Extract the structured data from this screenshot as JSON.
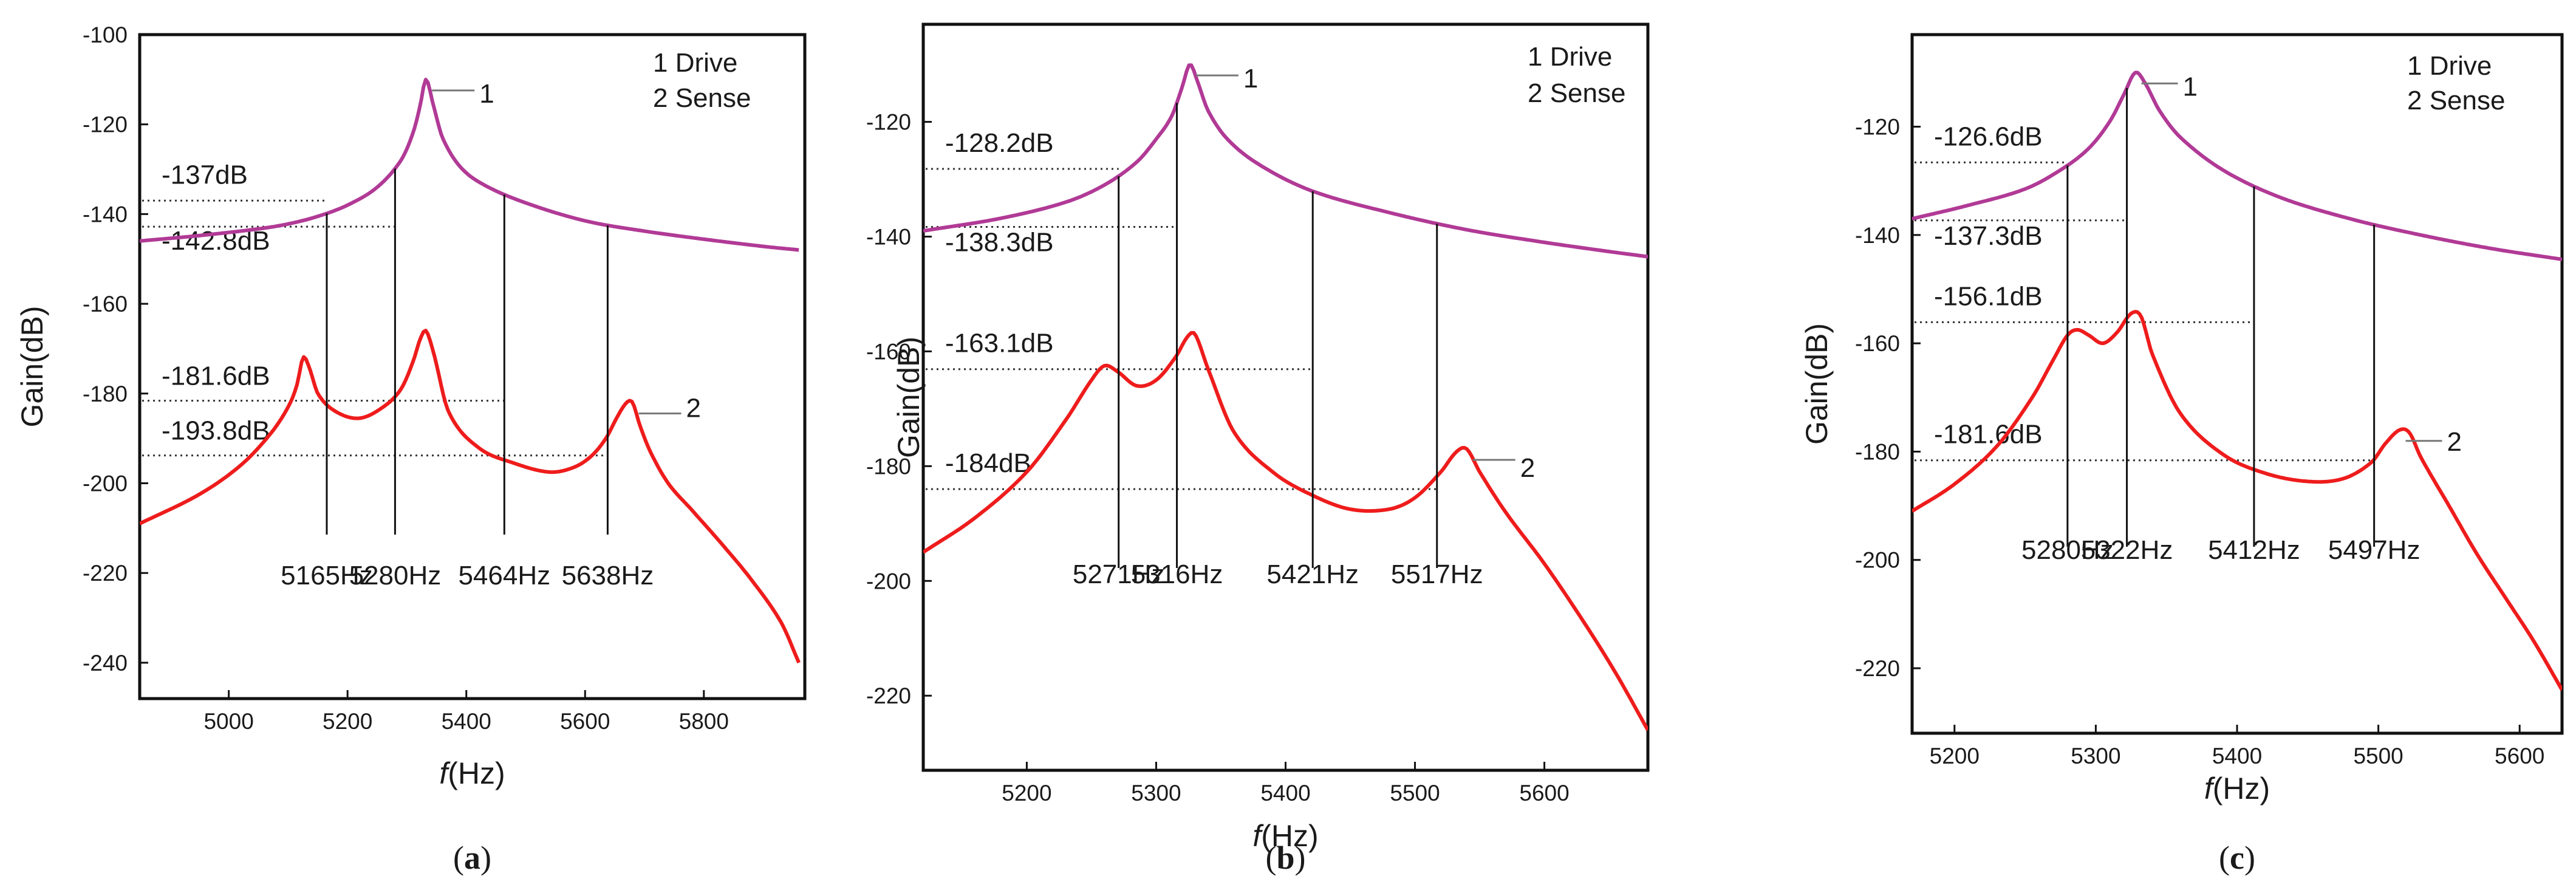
{
  "figure": {
    "labels": [
      "(a)",
      "(b)",
      "(c)"
    ],
    "label_parts": [
      {
        "open": "(",
        "letter": "a",
        "close": ")"
      },
      {
        "open": "(",
        "letter": "b",
        "close": ")"
      },
      {
        "open": "(",
        "letter": "c",
        "close": ")"
      }
    ]
  },
  "colors": {
    "drive": "#b13a96",
    "sense": "#ee1c1c",
    "axis": "#111111",
    "dotted": "#333333"
  },
  "chart_data": [
    {
      "type": "line",
      "title": "(a)",
      "xlabel_italic": "f",
      "xlabel_rest": "(Hz)",
      "ylabel": "Gain(dB)",
      "xlim": [
        4850,
        5970
      ],
      "ylim": [
        -248,
        -100
      ],
      "xticks": [
        5000,
        5200,
        5400,
        5600,
        5800
      ],
      "yticks": [
        -100,
        -120,
        -140,
        -160,
        -180,
        -200,
        -220,
        -240
      ],
      "legend": [
        "1  Drive",
        "2  Sense"
      ],
      "series_tags": [
        "1",
        "2"
      ],
      "series": [
        {
          "name": "Drive",
          "x": [
            4850,
            4950,
            5050,
            5100,
            5150,
            5200,
            5250,
            5290,
            5310,
            5322,
            5332,
            5345,
            5360,
            5390,
            5430,
            5500,
            5600,
            5700,
            5800,
            5900,
            5960
          ],
          "values": [
            -146,
            -144.8,
            -143.3,
            -142.2,
            -140.5,
            -138,
            -134,
            -128,
            -122,
            -116,
            -110,
            -116,
            -123,
            -129.5,
            -133.5,
            -137.5,
            -141.5,
            -143.8,
            -145.6,
            -147.2,
            -148
          ]
        },
        {
          "name": "Sense",
          "x": [
            4850,
            4950,
            5020,
            5070,
            5100,
            5115,
            5125,
            5135,
            5150,
            5180,
            5220,
            5260,
            5290,
            5310,
            5322,
            5332,
            5345,
            5370,
            5420,
            5480,
            5540,
            5580,
            5610,
            5635,
            5655,
            5670,
            5680,
            5692,
            5710,
            5740,
            5780,
            5830,
            5880,
            5930,
            5960
          ],
          "values": [
            -209,
            -202.5,
            -196,
            -189,
            -183,
            -178,
            -172,
            -174,
            -180,
            -184,
            -185.5,
            -183,
            -179,
            -173,
            -168,
            -166,
            -171,
            -184,
            -192,
            -195.5,
            -197.5,
            -196.5,
            -194,
            -190,
            -185,
            -182,
            -182,
            -187,
            -193,
            -200,
            -206,
            -213.5,
            -221.5,
            -231,
            -240
          ]
        }
      ],
      "annotations": [
        {
          "text": "-137dB",
          "y": -137
        },
        {
          "text": "-142.8dB",
          "y": -142.8
        },
        {
          "text": "-181.6dB",
          "y": -181.6
        },
        {
          "text": "-193.8dB",
          "y": -193.8
        }
      ],
      "vlines": [
        {
          "label": "5165Hz",
          "x": 5165
        },
        {
          "label": "5280Hz",
          "x": 5280
        },
        {
          "label": "5464Hz",
          "x": 5464
        },
        {
          "label": "5638Hz",
          "x": 5638
        }
      ]
    },
    {
      "type": "line",
      "title": "(b)",
      "xlabel_italic": "f",
      "xlabel_rest": "(Hz)",
      "ylabel": "Gain(dB)",
      "xlim": [
        5120,
        5680
      ],
      "ylim": [
        -233,
        -103
      ],
      "xticks": [
        5200,
        5300,
        5400,
        5500,
        5600
      ],
      "yticks": [
        -120,
        -140,
        -160,
        -180,
        -200,
        -220
      ],
      "legend": [
        "1  Drive",
        "2  Sense"
      ],
      "series_tags": [
        "1",
        "2"
      ],
      "series": [
        {
          "name": "Drive",
          "x": [
            5120,
            5180,
            5230,
            5260,
            5285,
            5300,
            5312,
            5320,
            5326,
            5332,
            5340,
            5355,
            5380,
            5420,
            5480,
            5540,
            5600,
            5650,
            5680
          ],
          "values": [
            -139,
            -136.8,
            -134,
            -131,
            -127,
            -123,
            -119,
            -114,
            -110,
            -113,
            -118,
            -123,
            -127.5,
            -132,
            -135.8,
            -138.8,
            -141,
            -142.6,
            -143.5
          ]
        },
        {
          "name": "Sense",
          "x": [
            5120,
            5160,
            5200,
            5230,
            5250,
            5260,
            5270,
            5285,
            5300,
            5315,
            5324,
            5330,
            5340,
            5360,
            5390,
            5420,
            5450,
            5480,
            5500,
            5520,
            5532,
            5540,
            5550,
            5570,
            5600,
            5630,
            5655,
            5680
          ],
          "values": [
            -195,
            -189,
            -181,
            -172,
            -165,
            -162.5,
            -163.5,
            -166,
            -165,
            -161,
            -157.5,
            -157,
            -163,
            -174,
            -181,
            -185,
            -187.5,
            -187.5,
            -185.5,
            -181,
            -177.5,
            -177,
            -181,
            -188,
            -197,
            -207,
            -216,
            -226
          ]
        }
      ],
      "annotations": [
        {
          "text": "-128.2dB",
          "y": -128.2
        },
        {
          "text": "-138.3dB",
          "y": -138.3
        },
        {
          "text": "-163.1dB",
          "y": -163.1
        },
        {
          "text": "-184dB",
          "y": -184
        }
      ],
      "vlines": [
        {
          "label": "5271Hz",
          "x": 5271
        },
        {
          "label": "5316Hz",
          "x": 5316
        },
        {
          "label": "5421Hz",
          "x": 5421
        },
        {
          "label": "5517Hz",
          "x": 5517
        }
      ]
    },
    {
      "type": "line",
      "title": "(c)",
      "xlabel_italic": "f",
      "xlabel_rest": "(Hz)",
      "ylabel": "Gain(dB)",
      "xlim": [
        5170,
        5630
      ],
      "ylim": [
        -232,
        -103
      ],
      "xticks": [
        5200,
        5300,
        5400,
        5500,
        5600
      ],
      "yticks": [
        -120,
        -140,
        -160,
        -180,
        -200,
        -220
      ],
      "legend": [
        "1  Drive",
        "2  Sense"
      ],
      "series_tags": [
        "1",
        "2"
      ],
      "series": [
        {
          "name": "Drive",
          "x": [
            5170,
            5210,
            5250,
            5275,
            5295,
            5310,
            5320,
            5328,
            5335,
            5345,
            5360,
            5390,
            5430,
            5480,
            5530,
            5580,
            5630
          ],
          "values": [
            -137,
            -134.5,
            -131.5,
            -128,
            -124,
            -119,
            -114,
            -110,
            -112,
            -117,
            -122,
            -128,
            -133,
            -137,
            -140,
            -142.5,
            -144.5
          ]
        },
        {
          "name": "Sense",
          "x": [
            5170,
            5200,
            5230,
            5255,
            5270,
            5280,
            5287,
            5295,
            5305,
            5315,
            5325,
            5332,
            5340,
            5360,
            5390,
            5420,
            5450,
            5475,
            5495,
            5505,
            5515,
            5522,
            5530,
            5550,
            5570,
            5590,
            5610,
            5630
          ],
          "values": [
            -191,
            -186,
            -179,
            -170,
            -163,
            -158.5,
            -157.5,
            -158.5,
            -160,
            -158,
            -154.5,
            -155,
            -162,
            -173,
            -180.5,
            -184,
            -185.5,
            -185,
            -182,
            -178.5,
            -176,
            -176.5,
            -181,
            -190,
            -199,
            -207,
            -215,
            -224
          ]
        }
      ],
      "annotations": [
        {
          "text": "-126.6dB",
          "y": -126.6
        },
        {
          "text": "-137.3dB",
          "y": -137.3
        },
        {
          "text": "-156.1dB",
          "y": -156.1
        },
        {
          "text": "-181.6dB",
          "y": -181.6
        }
      ],
      "vlines": [
        {
          "label": "5280Hz",
          "x": 5280
        },
        {
          "label": "5322Hz",
          "x": 5322
        },
        {
          "label": "5412Hz",
          "x": 5412
        },
        {
          "label": "5497Hz",
          "x": 5497
        }
      ]
    }
  ]
}
